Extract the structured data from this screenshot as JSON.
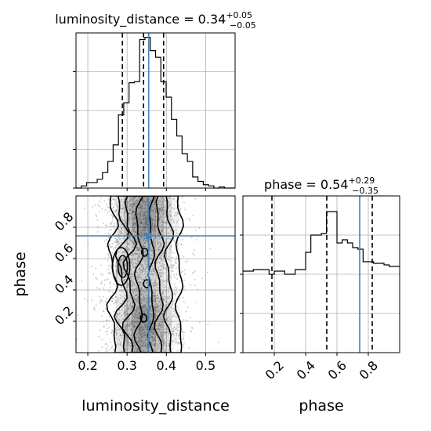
{
  "chart_data": {
    "type": "corner",
    "parameters": [
      "luminosity_distance",
      "phase"
    ],
    "truths": {
      "luminosity_distance": 0.355,
      "phase": 0.745
    },
    "colors": {
      "truth": "#4682b4",
      "hist": "#000000",
      "quantile": "#000000",
      "scatter": "#9a9a9a",
      "density": "#000000"
    },
    "luminosity_distance": {
      "title": {
        "main": "luminosity_distance = 0.34",
        "plus": "+0.05",
        "minus": "−0.05"
      },
      "xlabel": "luminosity_distance",
      "range": [
        0.17,
        0.575
      ],
      "ticks": [
        0.2,
        0.3,
        0.4,
        0.5
      ],
      "tick_labels": [
        "0.2",
        "0.3",
        "0.4",
        "0.5"
      ],
      "quantiles": [
        0.288,
        0.342,
        0.393
      ],
      "hist_edges": [
        0.17,
        0.1835,
        0.197,
        0.2105,
        0.224,
        0.2375,
        0.251,
        0.2645,
        0.278,
        0.2915,
        0.305,
        0.3185,
        0.332,
        0.3455,
        0.359,
        0.3725,
        0.386,
        0.3995,
        0.413,
        0.4265,
        0.44,
        0.4535,
        0.467,
        0.4805,
        0.494,
        0.5075,
        0.521,
        0.5345,
        0.548,
        0.5615,
        0.575
      ],
      "hist_counts": [
        0,
        2,
        5,
        5,
        8,
        14,
        24,
        39,
        66,
        77,
        95,
        96,
        134,
        136,
        124,
        118,
        96,
        82,
        62,
        47,
        31,
        24,
        10,
        6,
        3,
        2,
        0,
        1,
        0,
        0
      ],
      "hist_ymax": 140,
      "hist_yticks": [
        0,
        35,
        70,
        105
      ]
    },
    "phase": {
      "title": {
        "main": "phase = 0.54",
        "plus": "+0.29",
        "minus": "−0.35"
      },
      "xlabel": "phase",
      "ylabel": "phase",
      "range": [
        0.0,
        1.0
      ],
      "ticks": [
        0.2,
        0.4,
        0.6,
        0.8
      ],
      "tick_labels": [
        "0.2",
        "0.4",
        "0.6",
        "0.8"
      ],
      "quantiles": [
        0.185,
        0.535,
        0.825
      ],
      "hist_edges": [
        0.0,
        0.0333,
        0.0667,
        0.1,
        0.1333,
        0.1667,
        0.2,
        0.2333,
        0.2667,
        0.3,
        0.3333,
        0.3667,
        0.4,
        0.4333,
        0.4667,
        0.5,
        0.5333,
        0.5667,
        0.6,
        0.6333,
        0.6667,
        0.7,
        0.7333,
        0.7667,
        0.8,
        0.8333,
        0.8667,
        0.9,
        0.9333,
        0.9667,
        1.0
      ],
      "hist_counts": [
        52,
        52,
        53,
        53,
        53,
        50,
        52,
        52,
        50,
        50,
        53,
        53,
        64,
        75,
        75,
        76,
        90,
        90,
        70,
        72,
        70,
        67,
        66,
        58,
        58,
        57,
        57,
        56,
        55,
        55
      ],
      "hist_ymax": 100,
      "hist_yticks": [
        0,
        25,
        50,
        75
      ]
    },
    "joint": {
      "contour_levels": [
        "0.118",
        "0.393",
        "0.675",
        "0.865"
      ],
      "peak": {
        "luminosity_distance": 0.285,
        "phase": 0.55
      },
      "scatter_points": 2600,
      "xlim": [
        0.17,
        0.575
      ],
      "ylim": [
        0.0,
        1.0
      ]
    }
  }
}
